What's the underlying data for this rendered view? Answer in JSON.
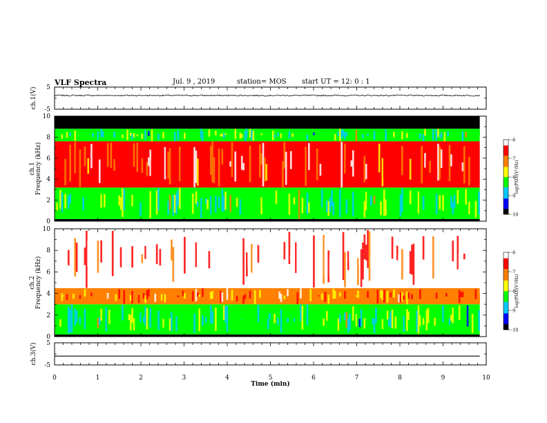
{
  "header": {
    "title": "VLF Spectra",
    "date": "Jul. 9 , 2019",
    "station": "station= MOS",
    "start": "start UT = 12: 0 : 1"
  },
  "chart_data": [
    {
      "type": "line",
      "panel": "ch.1",
      "ylabel": "ch.1(V)",
      "ylim": [
        -5,
        5
      ],
      "y_ticks": [
        "5",
        "-5"
      ],
      "xlim": [
        0,
        10
      ],
      "x_data_extent": [
        0,
        9.85
      ],
      "baseline_value": 1.2,
      "noise": "small fluctuation around baseline"
    },
    {
      "type": "heatmap",
      "panel": "ch.1",
      "ylabel": [
        "ch.1",
        "Frequency (kHz)"
      ],
      "ylim": [
        0,
        10
      ],
      "y_ticks": [
        "0",
        "2",
        "4",
        "6",
        "8",
        "10"
      ],
      "xlim": [
        0,
        10
      ],
      "x_data_extent": [
        0,
        9.85
      ],
      "bands": [
        {
          "from_khz": 0,
          "to_khz": 0.2,
          "log_psd": -10
        },
        {
          "from_khz": 0.2,
          "to_khz": 3.2,
          "log_psd": -8.2
        },
        {
          "from_khz": 3.2,
          "to_khz": 7.6,
          "log_psd": -6.6
        },
        {
          "from_khz": 7.6,
          "to_khz": 8.8,
          "log_psd": -8.3
        },
        {
          "from_khz": 8.8,
          "to_khz": 10,
          "log_psd": -10
        }
      ],
      "colorbar": {
        "label": "log(PSD)(V²/Hz)",
        "range": [
          -10,
          -6
        ],
        "ticks": [
          "-6",
          "-7",
          "-8",
          "-9",
          "-10"
        ],
        "colors": [
          "#000000",
          "#0000ff",
          "#00c8ff",
          "#00ff00",
          "#ffff00",
          "#ff8000",
          "#ff0000",
          "#ffffff"
        ]
      }
    },
    {
      "type": "heatmap",
      "panel": "ch.2",
      "ylabel": [
        "ch.2",
        "Frequency (kHz)"
      ],
      "ylim": [
        0,
        10
      ],
      "y_ticks": [
        "0",
        "2",
        "4",
        "6",
        "8",
        "10"
      ],
      "xlim": [
        0,
        10
      ],
      "x_data_extent": [
        0,
        9.85
      ],
      "bands": [
        {
          "from_khz": 0,
          "to_khz": 0.2,
          "log_psd": -10
        },
        {
          "from_khz": 0.2,
          "to_khz": 3.0,
          "log_psd": -8.3
        },
        {
          "from_khz": 3.0,
          "to_khz": 4.5,
          "log_psd": -7.0
        },
        {
          "from_khz": 4.5,
          "to_khz": 10,
          "log_psd": -6.1
        }
      ],
      "colorbar": {
        "label": "log(PSD)(V²/Hz)",
        "range": [
          -10,
          -6
        ],
        "ticks": [
          "-6",
          "-7",
          "-8",
          "-9",
          "-10"
        ],
        "colors": [
          "#000000",
          "#0000ff",
          "#00c8ff",
          "#00ff00",
          "#ffff00",
          "#ff8000",
          "#ff0000",
          "#ffffff"
        ]
      }
    },
    {
      "type": "line",
      "panel": "ch.3",
      "ylabel": "ch.3(V)",
      "ylim": [
        -5,
        5
      ],
      "y_ticks": [
        "5",
        "-5"
      ],
      "xlim": [
        0,
        10
      ],
      "x_data_extent": [
        0,
        9.85
      ],
      "baseline_value": -1.0,
      "noise": "flat"
    }
  ],
  "x_axis": {
    "label": "Time (min)",
    "ticks": [
      "0",
      "1",
      "2",
      "3",
      "4",
      "5",
      "6",
      "7",
      "8",
      "9",
      "10"
    ]
  }
}
